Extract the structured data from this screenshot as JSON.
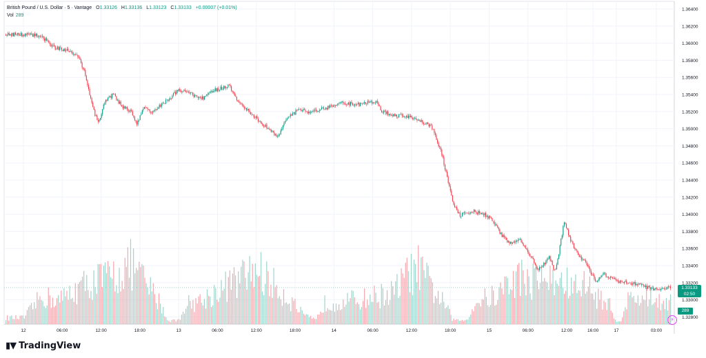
{
  "header": {
    "symbol": "British Pound / U.S. Dollar · 5 · Vantage",
    "open_label": "O",
    "open": "1.33126",
    "high_label": "H",
    "high": "1.33136",
    "low_label": "L",
    "low": "1.33123",
    "close_label": "C",
    "close": "1.33133",
    "change": "+0.00007 (+0.01%)",
    "vol_label": "Vol",
    "vol": "289"
  },
  "price_tag": {
    "price": "1.33133",
    "countdown": "02:50"
  },
  "volume_tag": "289",
  "brand": "TradingView",
  "colors": {
    "up": "#089981",
    "down": "#f23645",
    "up_vol": "#9fd4cb",
    "down_vol": "#f5a7ae",
    "grid": "#f0f3fa",
    "text": "#131722"
  },
  "chart_data": {
    "type": "candlestick",
    "title": "British Pound / U.S. Dollar · 5 · Vantage",
    "y_ticks": [
      "1.36400",
      "1.36200",
      "1.36000",
      "1.35800",
      "1.35600",
      "1.35400",
      "1.35200",
      "1.35000",
      "1.34800",
      "1.34600",
      "1.34400",
      "1.34200",
      "1.34000",
      "1.33800",
      "1.33600",
      "1.33400",
      "1.33200",
      "1.33000",
      "1.32800"
    ],
    "ylim": [
      1.3272,
      1.365
    ],
    "x_ticks": [
      "12",
      "06:00",
      "12:00",
      "18:00",
      "13",
      "06:00",
      "12:00",
      "18:00",
      "14",
      "06:00",
      "12:00",
      "18:00",
      "15",
      "06:00",
      "12:00",
      "16:00",
      "17",
      "03:00"
    ],
    "x_tick_pos": [
      0.0,
      0.065,
      0.13,
      0.195,
      0.26,
      0.325,
      0.39,
      0.455,
      0.52,
      0.585,
      0.65,
      0.715,
      0.78,
      0.845,
      0.91,
      0.954,
      0.993,
      1.06
    ],
    "price_path": [
      [
        0.0,
        1.361
      ],
      [
        0.03,
        1.3608
      ],
      [
        0.05,
        1.3595
      ],
      [
        0.07,
        1.3592
      ],
      [
        0.09,
        1.3585
      ],
      [
        0.1,
        1.357
      ],
      [
        0.115,
        1.3525
      ],
      [
        0.125,
        1.3505
      ],
      [
        0.135,
        1.353
      ],
      [
        0.15,
        1.354
      ],
      [
        0.165,
        1.3525
      ],
      [
        0.18,
        1.352
      ],
      [
        0.19,
        1.3505
      ],
      [
        0.2,
        1.3525
      ],
      [
        0.215,
        1.352
      ],
      [
        0.235,
        1.353
      ],
      [
        0.26,
        1.3545
      ],
      [
        0.28,
        1.354
      ],
      [
        0.3,
        1.3535
      ],
      [
        0.32,
        1.3545
      ],
      [
        0.345,
        1.355
      ],
      [
        0.36,
        1.353
      ],
      [
        0.38,
        1.3518
      ],
      [
        0.4,
        1.3505
      ],
      [
        0.415,
        1.3497
      ],
      [
        0.425,
        1.349
      ],
      [
        0.44,
        1.351
      ],
      [
        0.46,
        1.3522
      ],
      [
        0.48,
        1.3518
      ],
      [
        0.51,
        1.3525
      ],
      [
        0.53,
        1.353
      ],
      [
        0.56,
        1.3528
      ],
      [
        0.59,
        1.3532
      ],
      [
        0.6,
        1.352
      ],
      [
        0.62,
        1.3515
      ],
      [
        0.64,
        1.3515
      ],
      [
        0.66,
        1.351
      ],
      [
        0.675,
        1.3505
      ],
      [
        0.685,
        1.35
      ],
      [
        0.69,
        1.349
      ],
      [
        0.7,
        1.347
      ],
      [
        0.71,
        1.344
      ],
      [
        0.72,
        1.341
      ],
      [
        0.73,
        1.3398
      ],
      [
        0.75,
        1.3403
      ],
      [
        0.77,
        1.34
      ],
      [
        0.785,
        1.3392
      ],
      [
        0.8,
        1.3375
      ],
      [
        0.815,
        1.3365
      ],
      [
        0.83,
        1.337
      ],
      [
        0.845,
        1.3355
      ],
      [
        0.86,
        1.3335
      ],
      [
        0.87,
        1.334
      ],
      [
        0.88,
        1.335
      ],
      [
        0.89,
        1.333
      ],
      [
        0.9,
        1.337
      ],
      [
        0.905,
        1.339
      ],
      [
        0.915,
        1.337
      ],
      [
        0.93,
        1.335
      ],
      [
        0.94,
        1.3345
      ],
      [
        0.95,
        1.333
      ],
      [
        0.96,
        1.332
      ],
      [
        0.97,
        1.333
      ],
      [
        0.98,
        1.3325
      ],
      [
        1.0,
        1.332
      ],
      [
        1.02,
        1.3318
      ],
      [
        1.04,
        1.3315
      ],
      [
        1.06,
        1.331
      ],
      [
        1.075,
        1.3313
      ]
    ],
    "volume_shape": [
      [
        0.0,
        0.08
      ],
      [
        0.03,
        0.35
      ],
      [
        0.06,
        0.3
      ],
      [
        0.09,
        0.45
      ],
      [
        0.12,
        0.55
      ],
      [
        0.15,
        0.6
      ],
      [
        0.18,
        0.75
      ],
      [
        0.2,
        0.55
      ],
      [
        0.23,
        0.25
      ],
      [
        0.24,
        0.05
      ],
      [
        0.26,
        0.05
      ],
      [
        0.27,
        0.25
      ],
      [
        0.3,
        0.3
      ],
      [
        0.33,
        0.45
      ],
      [
        0.36,
        0.55
      ],
      [
        0.39,
        0.7
      ],
      [
        0.41,
        0.55
      ],
      [
        0.44,
        0.35
      ],
      [
        0.47,
        0.1
      ],
      [
        0.49,
        0.05
      ],
      [
        0.5,
        0.25
      ],
      [
        0.53,
        0.3
      ],
      [
        0.56,
        0.3
      ],
      [
        0.59,
        0.35
      ],
      [
        0.62,
        0.4
      ],
      [
        0.64,
        0.6
      ],
      [
        0.66,
        0.7
      ],
      [
        0.68,
        0.5
      ],
      [
        0.7,
        0.3
      ],
      [
        0.72,
        0.05
      ],
      [
        0.74,
        0.05
      ],
      [
        0.76,
        0.3
      ],
      [
        0.79,
        0.35
      ],
      [
        0.81,
        0.5
      ],
      [
        0.83,
        0.6
      ],
      [
        0.85,
        0.55
      ],
      [
        0.87,
        0.6
      ],
      [
        0.89,
        0.5
      ],
      [
        0.9,
        0.55
      ],
      [
        0.92,
        0.45
      ],
      [
        0.94,
        0.5
      ],
      [
        0.96,
        0.35
      ],
      [
        0.98,
        0.25
      ],
      [
        0.99,
        0.05
      ],
      [
        1.0,
        0.05
      ],
      [
        1.01,
        0.3
      ],
      [
        1.04,
        0.35
      ],
      [
        1.06,
        0.3
      ],
      [
        1.075,
        0.3
      ]
    ]
  }
}
